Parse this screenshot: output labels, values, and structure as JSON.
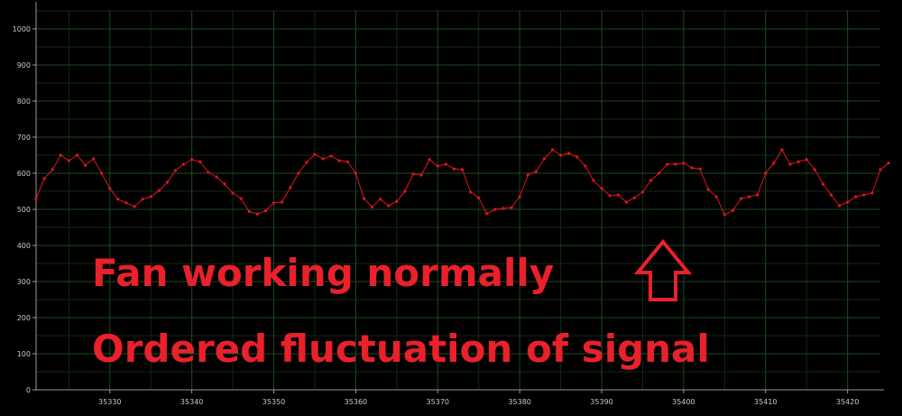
{
  "chart_data": {
    "type": "line",
    "title": "",
    "xlabel": "",
    "ylabel": "",
    "xlim": [
      35321,
      35424
    ],
    "ylim": [
      0,
      1050
    ],
    "yticks": [
      "0",
      "100",
      "200",
      "300",
      "400",
      "500",
      "600",
      "700",
      "800",
      "900",
      "1000"
    ],
    "xticks": [
      "35330",
      "35340",
      "35350",
      "35360",
      "35370",
      "35380",
      "35390",
      "35400",
      "35410",
      "35420"
    ],
    "grid": true,
    "series": [
      {
        "color": "#e0141e",
        "x_start": 35321,
        "x_step": 1,
        "values": [
          530,
          585,
          610,
          650,
          635,
          650,
          622,
          640,
          600,
          558,
          528,
          518,
          508,
          528,
          535,
          552,
          575,
          608,
          625,
          638,
          632,
          603,
          590,
          570,
          545,
          530,
          494,
          487,
          496,
          518,
          520,
          560,
          600,
          630,
          652,
          640,
          648,
          635,
          632,
          600,
          530,
          507,
          528,
          510,
          522,
          550,
          598,
          595,
          638,
          620,
          625,
          612,
          610,
          548,
          532,
          488,
          500,
          503,
          505,
          535,
          595,
          605,
          640,
          665,
          650,
          655,
          645,
          620,
          580,
          558,
          538,
          540,
          520,
          532,
          548,
          580,
          600,
          625,
          625,
          628,
          615,
          612,
          555,
          535,
          485,
          497,
          530,
          535,
          540,
          600,
          628,
          665,
          625,
          632,
          638,
          610,
          570,
          540,
          510,
          520,
          535,
          540,
          545,
          610,
          628
        ]
      }
    ],
    "annotations": [
      {
        "text": "Fan working normally"
      },
      {
        "text": "Ordered fluctuation of signal"
      }
    ],
    "annotation_color": "#e8212a"
  }
}
